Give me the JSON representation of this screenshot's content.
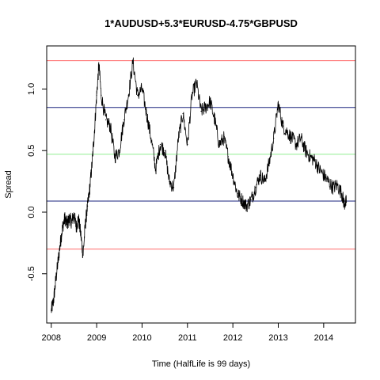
{
  "chart_data": {
    "type": "line",
    "title": "1*AUDUSD+5.3*EURUSD-4.75*GBPUSD",
    "xlabel": "Time  (HalfLife is 99 days)",
    "ylabel": "Spread",
    "xlim": [
      2007.9,
      2014.7
    ],
    "ylim": [
      -0.9,
      1.35
    ],
    "x_ticks": [
      2008,
      2009,
      2010,
      2011,
      2012,
      2013,
      2014
    ],
    "y_ticks": [
      -0.5,
      0.0,
      0.5,
      1.0
    ],
    "y_tick_labels": [
      "-0.5",
      "0.0",
      "0.5",
      "1.0"
    ],
    "grid": false,
    "reference_lines": [
      {
        "y": 1.23,
        "color": "#ff6b6b"
      },
      {
        "y": 0.85,
        "color": "#1a237e"
      },
      {
        "y": 0.47,
        "color": "#90ee90"
      },
      {
        "y": 0.09,
        "color": "#1a237e"
      },
      {
        "y": -0.3,
        "color": "#ff6b6b"
      }
    ],
    "series": [
      {
        "color": "#000000",
        "x": [
          2008.0,
          2008.05,
          2008.1,
          2008.15,
          2008.2,
          2008.25,
          2008.3,
          2008.35,
          2008.4,
          2008.45,
          2008.5,
          2008.55,
          2008.6,
          2008.65,
          2008.7,
          2008.75,
          2008.8,
          2008.85,
          2008.9,
          2008.95,
          2009.0,
          2009.05,
          2009.1,
          2009.2,
          2009.3,
          2009.4,
          2009.5,
          2009.6,
          2009.7,
          2009.8,
          2009.9,
          2010.0,
          2010.1,
          2010.2,
          2010.3,
          2010.4,
          2010.5,
          2010.6,
          2010.7,
          2010.8,
          2010.9,
          2011.0,
          2011.1,
          2011.2,
          2011.3,
          2011.4,
          2011.5,
          2011.6,
          2011.7,
          2011.8,
          2011.9,
          2012.0,
          2012.1,
          2012.2,
          2012.3,
          2012.4,
          2012.5,
          2012.6,
          2012.7,
          2012.8,
          2012.9,
          2013.0,
          2013.1,
          2013.2,
          2013.3,
          2013.4,
          2013.5,
          2013.6,
          2013.7,
          2013.8,
          2013.9,
          2014.0,
          2014.1,
          2014.2,
          2014.3,
          2014.4,
          2014.45,
          2014.5
        ],
        "y": [
          -0.8,
          -0.72,
          -0.55,
          -0.4,
          -0.25,
          -0.12,
          -0.05,
          -0.1,
          -0.05,
          -0.08,
          -0.02,
          -0.12,
          -0.05,
          -0.18,
          -0.35,
          -0.1,
          0.05,
          0.2,
          0.4,
          0.65,
          0.95,
          1.2,
          0.95,
          0.75,
          0.7,
          0.45,
          0.5,
          0.75,
          0.95,
          1.22,
          0.95,
          1.0,
          0.8,
          0.6,
          0.35,
          0.55,
          0.5,
          0.25,
          0.2,
          0.6,
          0.8,
          0.55,
          0.95,
          1.05,
          0.82,
          0.85,
          0.9,
          0.75,
          0.55,
          0.6,
          0.45,
          0.3,
          0.15,
          0.1,
          0.05,
          0.1,
          0.2,
          0.3,
          0.25,
          0.4,
          0.6,
          0.88,
          0.7,
          0.65,
          0.6,
          0.55,
          0.6,
          0.5,
          0.45,
          0.42,
          0.35,
          0.3,
          0.25,
          0.2,
          0.22,
          0.15,
          0.07,
          0.08
        ]
      }
    ]
  }
}
